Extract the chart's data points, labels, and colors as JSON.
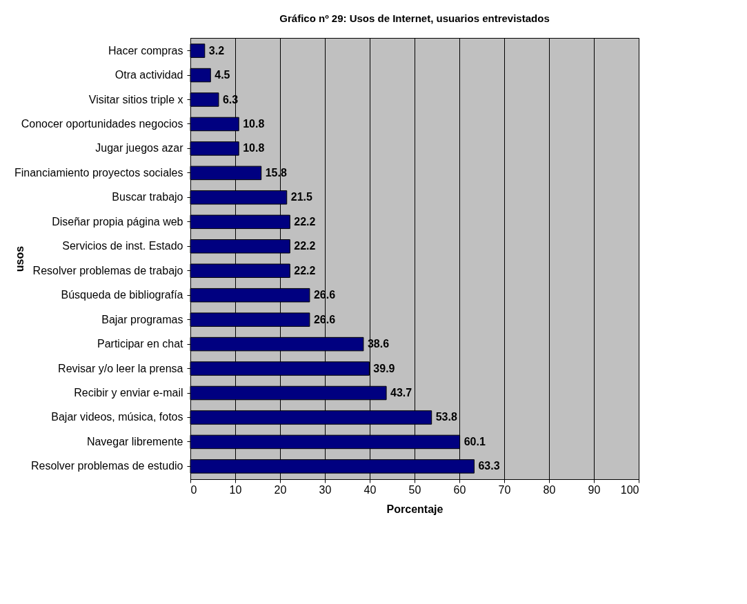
{
  "chart_data": {
    "type": "bar",
    "orientation": "horizontal",
    "title": "Gráfico nº 29: Usos de Internet, usuarios entrevistados",
    "xlabel": "Porcentaje",
    "ylabel": "usos",
    "categories": [
      "Hacer compras",
      "Otra actividad",
      "Visitar sitios triple x",
      "Conocer oportunidades negocios",
      "Jugar juegos azar",
      "Financiamiento proyectos sociales",
      "Buscar trabajo",
      "Diseñar propia página web",
      "Servicios de inst. Estado",
      "Resolver problemas de trabajo",
      "Búsqueda de bibliografía",
      "Bajar programas",
      "Participar en chat",
      "Revisar y/o leer la prensa",
      "Recibir y enviar e-mail",
      "Bajar videos, música, fotos",
      "Navegar libremente",
      "Resolver problemas de estudio"
    ],
    "values": [
      3.2,
      4.5,
      6.3,
      10.8,
      10.8,
      15.8,
      21.5,
      22.2,
      22.2,
      22.2,
      26.6,
      26.6,
      38.6,
      39.9,
      43.7,
      53.8,
      60.1,
      63.3
    ],
    "color": "#000080",
    "xlim": [
      0,
      100
    ],
    "xticks": [
      0,
      10,
      20,
      30,
      40,
      50,
      60,
      70,
      80,
      90,
      100
    ],
    "grid": "x",
    "data_labels": true
  }
}
